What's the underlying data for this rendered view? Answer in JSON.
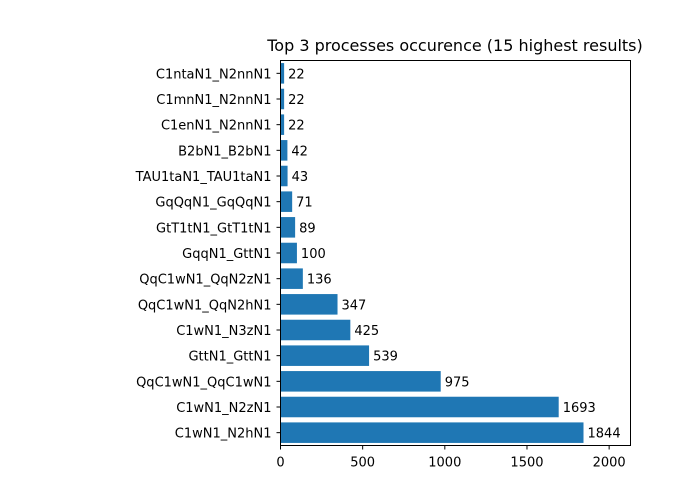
{
  "colors": {
    "bar": "#1f77b4",
    "axis": "#000000",
    "background": "#ffffff"
  },
  "chart_data": {
    "type": "bar",
    "orientation": "horizontal",
    "title": "Top 3 processes occurence (15 highest results)",
    "xlabel": "",
    "ylabel": "",
    "xlim": [
      0,
      2130
    ],
    "xticks": [
      0,
      500,
      1000,
      1500,
      2000
    ],
    "grid": false,
    "categories": [
      "C1wN1_N2hN1",
      "C1wN1_N2zN1",
      "QqC1wN1_QqC1wN1",
      "GttN1_GttN1",
      "C1wN1_N3zN1",
      "QqC1wN1_QqN2hN1",
      "QqC1wN1_QqN2zN1",
      "GqqN1_GttN1",
      "GtT1tN1_GtT1tN1",
      "GqQqN1_GqQqN1",
      "TAU1taN1_TAU1taN1",
      "B2bN1_B2bN1",
      "C1enN1_N2nnN1",
      "C1mnN1_N2nnN1",
      "C1ntaN1_N2nnN1"
    ],
    "values": [
      1844,
      1693,
      975,
      539,
      425,
      347,
      136,
      100,
      89,
      71,
      43,
      42,
      22,
      22,
      22
    ]
  }
}
